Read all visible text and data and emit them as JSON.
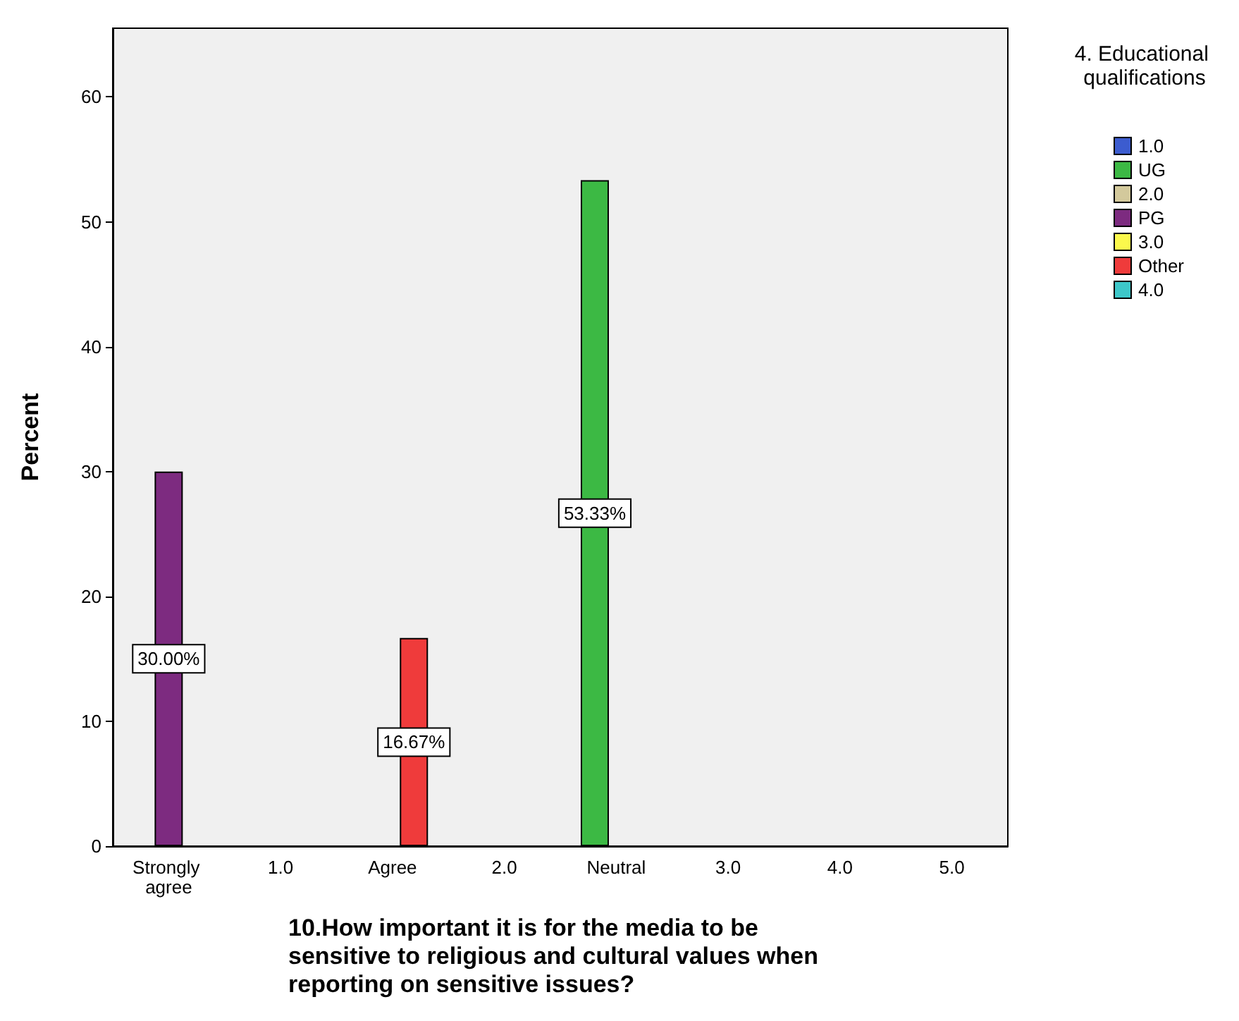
{
  "chart_data": {
    "type": "bar",
    "xlabel": "10.How important it is for the media to be sensitive to religious and cultural values when reporting on sensitive issues?",
    "ylabel": "Percent",
    "legend_title": "4. Educational qualifications",
    "categories": [
      "Strongly agree",
      "1.0",
      "Agree",
      "2.0",
      "Neutral",
      "3.0",
      "4.0",
      "5.0"
    ],
    "series": [
      {
        "name": "1.0",
        "color": "#3c5ccf",
        "values": [
          null,
          null,
          null,
          null,
          null,
          null,
          null,
          null
        ]
      },
      {
        "name": "UG",
        "color": "#3cb944",
        "values": [
          null,
          null,
          null,
          null,
          53.33,
          null,
          null,
          null
        ],
        "value_labels": [
          null,
          null,
          null,
          null,
          "53.33%",
          null,
          null,
          null
        ]
      },
      {
        "name": "2.0",
        "color": "#d3c99c",
        "values": [
          null,
          null,
          null,
          null,
          null,
          null,
          null,
          null
        ]
      },
      {
        "name": "PG",
        "color": "#7d2b80",
        "values": [
          30,
          null,
          null,
          null,
          null,
          null,
          null,
          null
        ],
        "value_labels": [
          "30.00%",
          null,
          null,
          null,
          null,
          null,
          null,
          null
        ]
      },
      {
        "name": "3.0",
        "color": "#fbf84c",
        "values": [
          null,
          null,
          null,
          null,
          null,
          null,
          null,
          null
        ]
      },
      {
        "name": "Other",
        "color": "#ef3b3b",
        "values": [
          null,
          null,
          16.67,
          null,
          null,
          null,
          null,
          null
        ],
        "value_labels": [
          null,
          null,
          "16.67%",
          null,
          null,
          null,
          null,
          null
        ]
      },
      {
        "name": "4.0",
        "color": "#3dc7c9",
        "values": [
          null,
          null,
          null,
          null,
          null,
          null,
          null,
          null
        ]
      }
    ],
    "ylim": [
      0,
      65.5
    ],
    "yticks": [
      0,
      10,
      20,
      30,
      40,
      50,
      60
    ],
    "grid": false,
    "legend": "right"
  }
}
